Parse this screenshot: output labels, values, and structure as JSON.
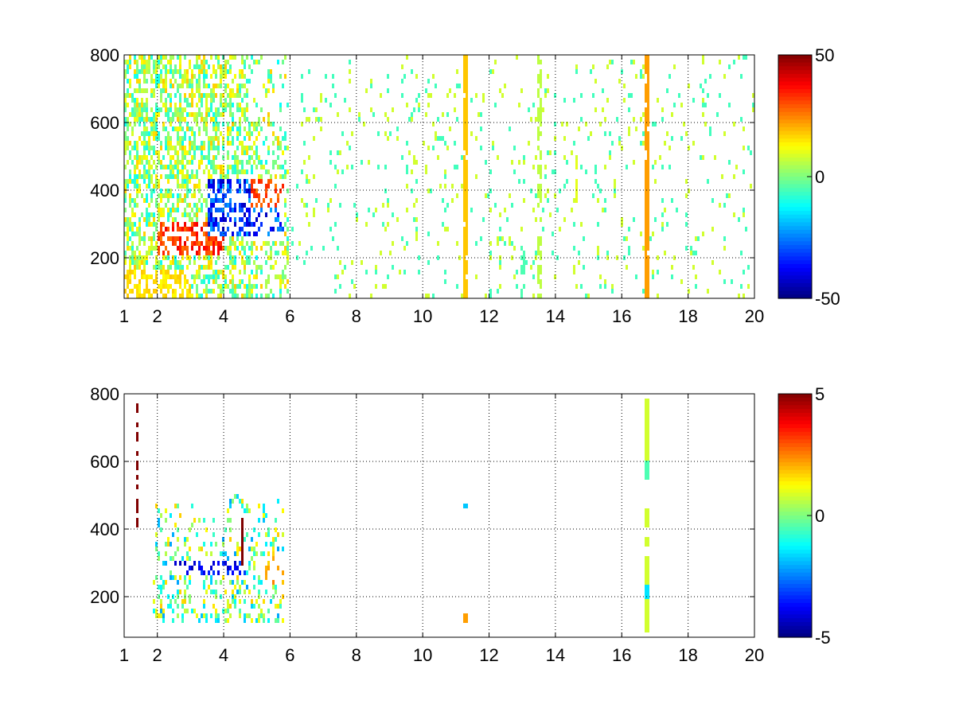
{
  "chart_data": [
    {
      "type": "heatmap",
      "title": "",
      "xlabel": "",
      "ylabel": "",
      "xlim": [
        1,
        20
      ],
      "ylim": [
        80,
        800
      ],
      "x_ticks": [
        1,
        2,
        4,
        6,
        8,
        10,
        12,
        14,
        16,
        18,
        20
      ],
      "x_tick_labels": [
        "1",
        "2",
        "4",
        "6",
        "8",
        "10",
        "12",
        "14",
        "16",
        "18",
        "20"
      ],
      "y_ticks": [
        200,
        400,
        600,
        800
      ],
      "y_tick_labels": [
        "200",
        "400",
        "600",
        "800"
      ],
      "grid": true,
      "colormap": "jet",
      "colorbar": {
        "min": -50,
        "max": 50,
        "tick_labels": [
          "50",
          "0",
          "-50"
        ],
        "ticks": [
          50,
          0,
          -50
        ]
      },
      "features": [
        {
          "x": [
            1.2,
            6.0
          ],
          "y": [
            80,
            800
          ],
          "value_range": [
            -50,
            50
          ],
          "description_value": "dense mixed region"
        },
        {
          "x": [
            2.0,
            4.0
          ],
          "y": [
            200,
            300
          ],
          "value": 35
        },
        {
          "x": [
            3.5,
            5.8
          ],
          "y": [
            250,
            420
          ],
          "value": -40
        },
        {
          "x": [
            11.2,
            11.3
          ],
          "y": [
            80,
            800
          ],
          "value": 15
        },
        {
          "x": [
            16.7,
            16.8
          ],
          "y": [
            80,
            800
          ],
          "value": 20
        }
      ]
    },
    {
      "type": "heatmap",
      "title": "",
      "xlabel": "",
      "ylabel": "",
      "xlim": [
        1,
        20
      ],
      "ylim": [
        80,
        800
      ],
      "x_ticks": [
        1,
        2,
        4,
        6,
        8,
        10,
        12,
        14,
        16,
        18,
        20
      ],
      "x_tick_labels": [
        "1",
        "2",
        "4",
        "6",
        "8",
        "10",
        "12",
        "14",
        "16",
        "18",
        "20"
      ],
      "y_ticks": [
        200,
        400,
        600,
        800
      ],
      "y_tick_labels": [
        "200",
        "400",
        "600",
        "800"
      ],
      "grid": true,
      "colormap": "jet",
      "colorbar": {
        "min": -5,
        "max": 5,
        "tick_labels": [
          "5",
          "0",
          "-5"
        ],
        "ticks": [
          5,
          0,
          -5
        ]
      },
      "features": [
        {
          "x": [
            1.5,
            5.8
          ],
          "y": [
            110,
            500
          ],
          "value_range": [
            -5,
            5
          ]
        },
        {
          "x": [
            2.5,
            4.5
          ],
          "y": [
            260,
            300
          ],
          "value": -4
        },
        {
          "x": [
            11.2,
            11.3
          ],
          "y": [
            450,
            470
          ],
          "value": -1.5
        },
        {
          "x": [
            11.2,
            11.3
          ],
          "y": [
            110,
            140
          ],
          "value": 2
        },
        {
          "x": [
            16.7,
            16.8
          ],
          "y": [
            80,
            780
          ],
          "value": 1
        }
      ]
    }
  ]
}
